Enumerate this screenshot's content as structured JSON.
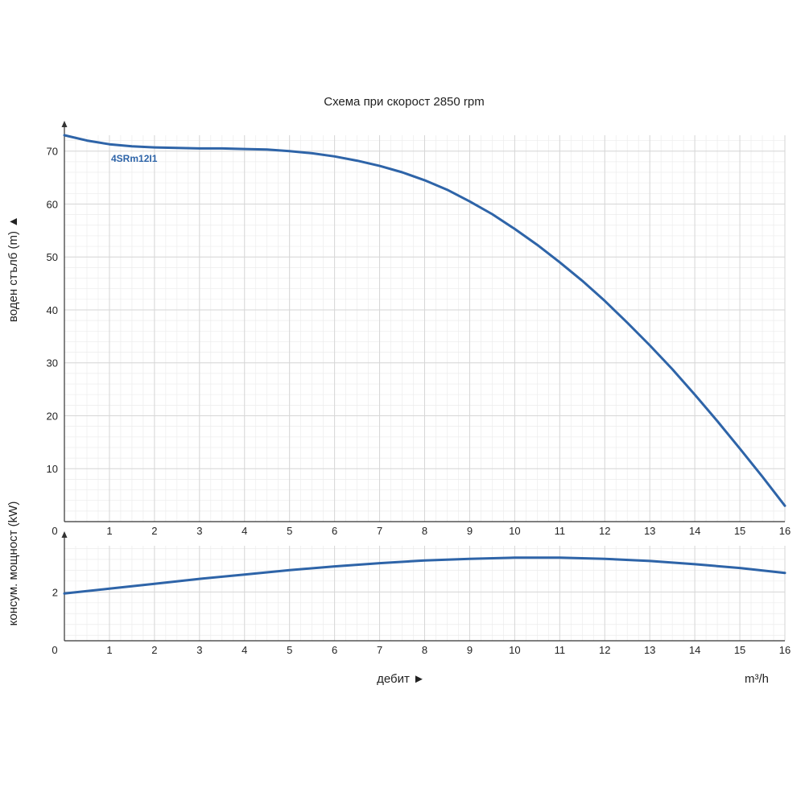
{
  "colors": {
    "series": "#2e64a8",
    "grid_major": "#d6d6d6",
    "grid_minor": "#ececec",
    "axis": "#333333"
  },
  "chart_data": [
    {
      "type": "line",
      "title": "Схема при скорост 2850 rpm",
      "xlabel": "",
      "ylabel": "воден стълб (m) ▲",
      "x_ticks": [
        0,
        1,
        2,
        3,
        4,
        5,
        6,
        7,
        8,
        9,
        10,
        11,
        12,
        13,
        14,
        15,
        16
      ],
      "y_ticks": [
        10,
        20,
        30,
        40,
        50,
        60,
        70
      ],
      "xlim": [
        0,
        16
      ],
      "ylim": [
        0,
        73
      ],
      "grid": true,
      "series": [
        {
          "name": "4SRm12I1",
          "x": [
            0,
            0.5,
            1,
            1.5,
            2,
            2.5,
            3,
            3.5,
            4,
            4.5,
            5,
            5.5,
            6,
            6.5,
            7,
            7.5,
            8,
            8.5,
            9,
            9.5,
            10,
            10.5,
            11,
            11.5,
            12,
            12.5,
            13,
            13.5,
            14,
            14.5,
            15,
            15.5,
            16
          ],
          "y": [
            73,
            72.0,
            71.3,
            70.9,
            70.7,
            70.6,
            70.5,
            70.5,
            70.4,
            70.3,
            70.0,
            69.6,
            69.0,
            68.2,
            67.2,
            66.0,
            64.5,
            62.7,
            60.5,
            58.1,
            55.3,
            52.3,
            49.0,
            45.5,
            41.7,
            37.6,
            33.3,
            28.8,
            24.0,
            19.0,
            13.8,
            8.5,
            3
          ]
        }
      ]
    },
    {
      "type": "line",
      "title": "",
      "xlabel": "дебит ►",
      "ylabel": "консум. мощност (kW)",
      "x_unit": "m³/h",
      "x_ticks": [
        0,
        1,
        2,
        3,
        4,
        5,
        6,
        7,
        8,
        9,
        10,
        11,
        12,
        13,
        14,
        15,
        16
      ],
      "y_ticks": [
        2
      ],
      "xlim": [
        0,
        16
      ],
      "ylim": [
        1.1,
        2.85
      ],
      "grid": true,
      "series": [
        {
          "x": [
            0,
            1,
            2,
            3,
            4,
            5,
            6,
            7,
            8,
            9,
            10,
            11,
            12,
            13,
            14,
            15,
            16
          ],
          "y": [
            1.97,
            2.06,
            2.15,
            2.24,
            2.32,
            2.4,
            2.47,
            2.53,
            2.58,
            2.61,
            2.63,
            2.63,
            2.61,
            2.57,
            2.51,
            2.44,
            2.35
          ]
        }
      ]
    }
  ]
}
